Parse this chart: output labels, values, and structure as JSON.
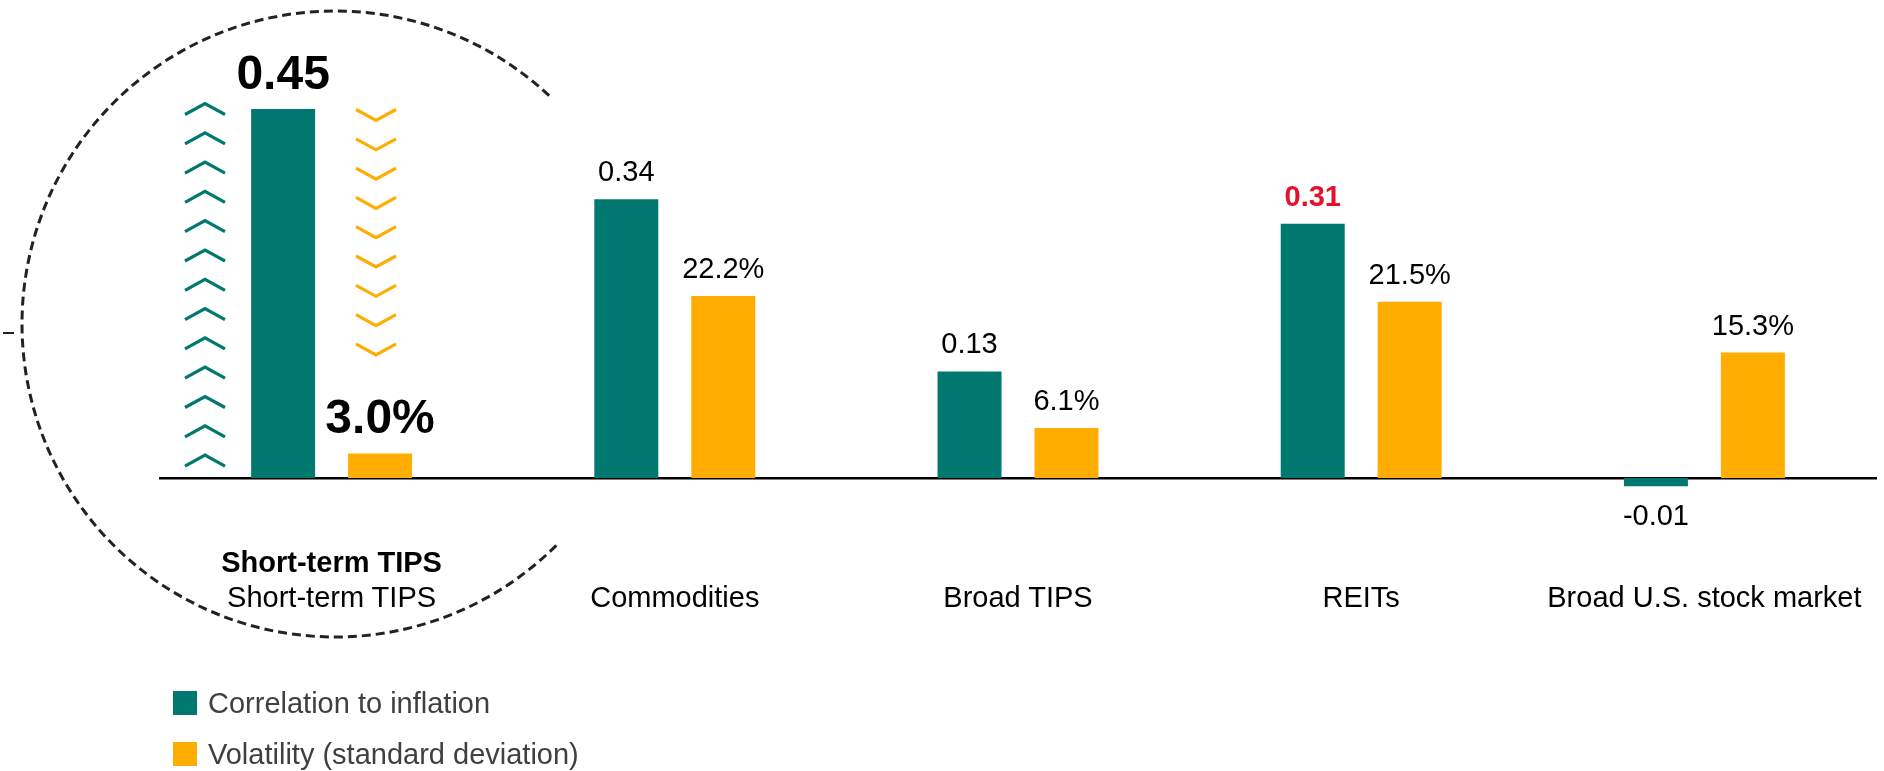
{
  "chart_data": {
    "type": "bar",
    "categories": [
      "Short-term TIPS",
      "Commodities",
      "Broad TIPS",
      "REITs",
      "Broad U.S. stock market"
    ],
    "series": [
      {
        "name": "Correlation to inflation",
        "color": "#00786f",
        "values": [
          0.45,
          0.34,
          0.13,
          0.31,
          -0.01
        ],
        "value_labels": [
          "0.45",
          "0.34",
          "0.13",
          "0.31",
          "-0.01"
        ]
      },
      {
        "name": "Volatility (standard deviation)",
        "color": "#ffad00",
        "axis": "y2",
        "values": [
          3.0,
          22.2,
          6.1,
          21.5,
          15.3
        ],
        "value_labels": [
          "3.0%",
          "22.2%",
          "6.1%",
          "21.5%",
          "15.3%"
        ]
      }
    ],
    "tick_labels": "x",
    "legend": "bottom left",
    "annotations": [
      "Short-term TIPS"
    ]
  }
}
